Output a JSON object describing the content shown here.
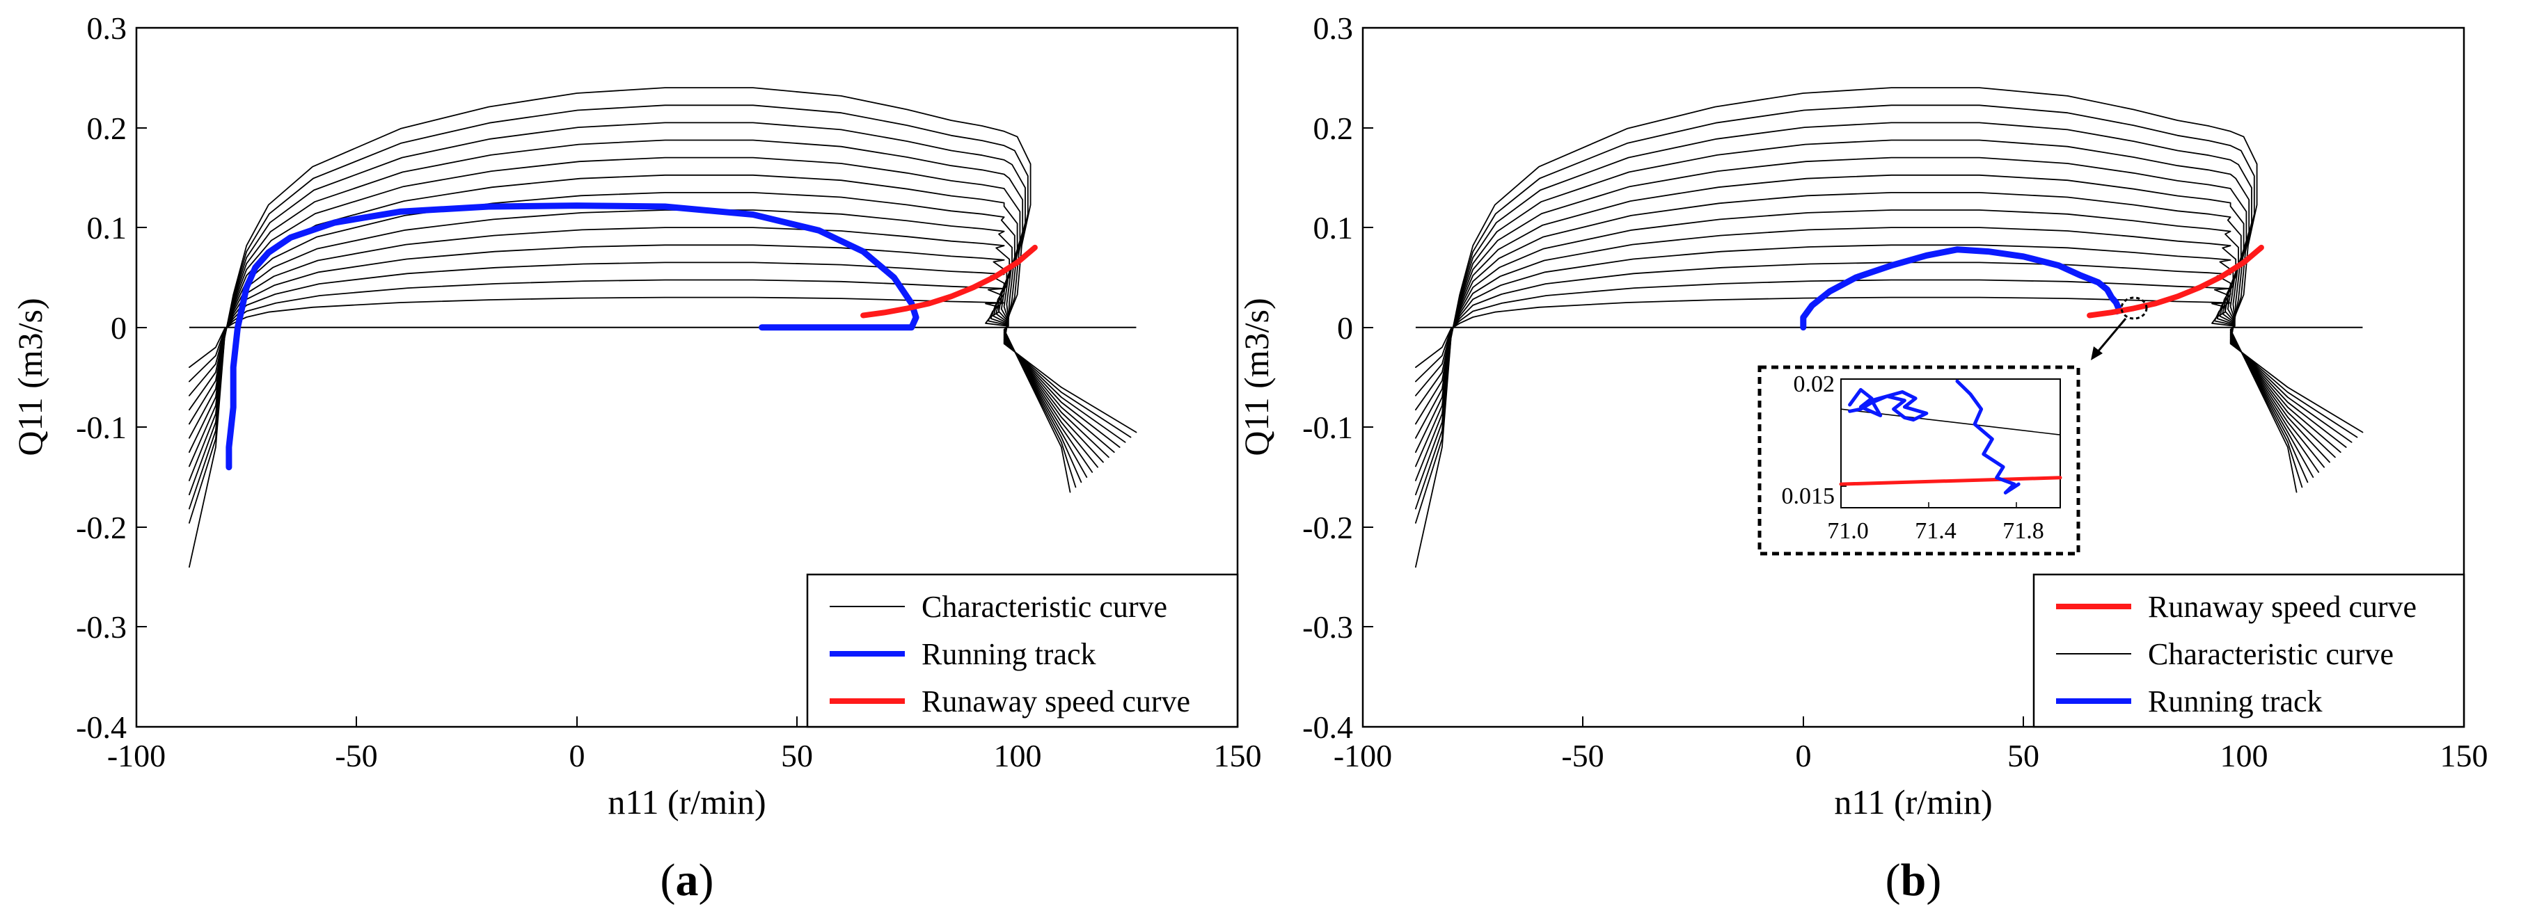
{
  "figure": {
    "colors": {
      "characteristic": "#000000",
      "running": "#0a1aff",
      "runaway": "#ff1a1a"
    }
  },
  "chart_data": [
    {
      "type": "line",
      "panel_label": "(a)",
      "panel_letter": "a",
      "xlabel": "n11 (r/min)",
      "ylabel": "Q11 (m3/s)",
      "xlim": [
        -100,
        150
      ],
      "ylim": [
        -0.4,
        0.3
      ],
      "xticks": [
        -100,
        -50,
        0,
        50,
        100,
        150
      ],
      "xtick_labels": [
        "-100",
        "-50",
        "0",
        "50",
        "100",
        "150"
      ],
      "yticks": [
        -0.4,
        -0.3,
        -0.2,
        -0.1,
        0,
        0.1,
        0.2,
        0.3
      ],
      "ytick_labels": [
        "-0.4",
        "-0.3",
        "-0.2",
        "-0.1",
        "0",
        "0.1",
        "0.2",
        "0.3"
      ],
      "grid": false,
      "legend": {
        "placement": "bottom-right",
        "entries": [
          "Characteristic curve",
          "Running track",
          "Runaway speed curve"
        ]
      },
      "series": [
        {
          "name": "Characteristic curve",
          "kind": "family",
          "count": 13,
          "top_level_range": [
            0.03,
            0.24
          ],
          "x": [
            -88,
            -82,
            -80,
            -78,
            -75,
            -70,
            -60,
            -40,
            -20,
            0,
            20,
            40,
            60,
            75,
            85,
            92,
            97,
            100,
            103,
            103,
            101,
            100,
            98,
            97,
            110,
            127
          ],
          "shape": [
            -0.28,
            -0.14,
            -0.04,
            0.12,
            0.3,
            0.45,
            0.59,
            0.73,
            0.81,
            0.86,
            0.88,
            0.88,
            0.85,
            0.8,
            0.76,
            0.74,
            0.72,
            0.7,
            0.6,
            0.45,
            0.3,
            0.12,
            0.04,
            -0.06,
            -0.16,
            -0.24
          ]
        },
        {
          "name": "Running track",
          "x": [
            -79,
            -79,
            -78,
            -78,
            -77,
            -76,
            -75,
            -73,
            -70,
            -65,
            -55,
            -40,
            -20,
            0,
            20,
            40,
            55,
            65,
            72,
            76,
            77,
            76,
            72,
            60,
            42
          ],
          "y": [
            -0.14,
            -0.12,
            -0.08,
            -0.04,
            0.0,
            0.02,
            0.04,
            0.06,
            0.075,
            0.09,
            0.105,
            0.116,
            0.121,
            0.122,
            0.121,
            0.113,
            0.097,
            0.076,
            0.05,
            0.024,
            0.01,
            0.0,
            0.0,
            0.0,
            0.0
          ]
        },
        {
          "name": "Runaway speed curve",
          "x": [
            65,
            70,
            75,
            80,
            85,
            90,
            95,
            100,
            104
          ],
          "y": [
            0.012,
            0.015,
            0.019,
            0.024,
            0.031,
            0.04,
            0.051,
            0.065,
            0.08
          ]
        }
      ]
    },
    {
      "type": "line",
      "panel_label": "(b)",
      "panel_letter": "b",
      "xlabel": "n11 (r/min)",
      "ylabel": "Q11 (m3/s)",
      "xlim": [
        -100,
        150
      ],
      "ylim": [
        -0.4,
        0.3
      ],
      "xticks": [
        -100,
        -50,
        0,
        50,
        100,
        150
      ],
      "xtick_labels": [
        "-100",
        "-50",
        "0",
        "50",
        "100",
        "150"
      ],
      "yticks": [
        -0.4,
        -0.3,
        -0.2,
        -0.1,
        0,
        0.1,
        0.2,
        0.3
      ],
      "ytick_labels": [
        "-0.4",
        "-0.3",
        "-0.2",
        "-0.1",
        "0",
        "0.1",
        "0.2",
        "0.3"
      ],
      "grid": false,
      "legend": {
        "placement": "bottom-right",
        "entries": [
          "Runaway speed curve",
          "Characteristic curve",
          "Running track"
        ]
      },
      "series": [
        {
          "name": "Characteristic curve",
          "kind": "family",
          "count": 13,
          "top_level_range": [
            0.03,
            0.24
          ],
          "x": [
            -88,
            -82,
            -80,
            -78,
            -75,
            -70,
            -60,
            -40,
            -20,
            0,
            20,
            40,
            60,
            75,
            85,
            92,
            97,
            100,
            103,
            103,
            101,
            100,
            98,
            97,
            110,
            127
          ],
          "shape": [
            -0.28,
            -0.14,
            -0.04,
            0.12,
            0.3,
            0.45,
            0.59,
            0.73,
            0.81,
            0.86,
            0.88,
            0.88,
            0.85,
            0.8,
            0.76,
            0.74,
            0.72,
            0.7,
            0.6,
            0.45,
            0.3,
            0.12,
            0.04,
            -0.06,
            -0.16,
            -0.24
          ]
        },
        {
          "name": "Running track",
          "x": [
            0,
            0,
            2,
            6,
            12,
            20,
            28,
            35,
            42,
            50,
            58,
            63,
            67,
            69,
            70,
            71,
            71.5,
            71.8,
            71.2
          ],
          "y": [
            0.0,
            0.01,
            0.022,
            0.036,
            0.05,
            0.062,
            0.072,
            0.078,
            0.076,
            0.071,
            0.062,
            0.052,
            0.045,
            0.038,
            0.03,
            0.025,
            0.02,
            0.017,
            0.016
          ]
        },
        {
          "name": "Runaway speed curve",
          "x": [
            65,
            70,
            75,
            80,
            85,
            90,
            95,
            100,
            104
          ],
          "y": [
            0.012,
            0.015,
            0.019,
            0.024,
            0.031,
            0.04,
            0.051,
            0.065,
            0.08
          ]
        }
      ],
      "inset": {
        "zoom_center": [
          71.4,
          0.018
        ],
        "xlim": [
          71.0,
          72.0
        ],
        "ylim": [
          0.014,
          0.02
        ],
        "xtick_labels": [
          "71.0",
          "71.4",
          "71.8"
        ],
        "xticks": [
          71.0,
          71.4,
          71.8
        ],
        "ytick_labels": [
          "0.02",
          "0.015"
        ],
        "yticks": [
          0.02,
          0.015
        ],
        "characteristic": {
          "x": [
            71.0,
            72.0
          ],
          "y": [
            0.0186,
            0.0174
          ]
        },
        "runaway": {
          "x": [
            71.0,
            72.0
          ],
          "y": [
            0.0151,
            0.0154
          ]
        },
        "running_track_1": {
          "x": [
            71.04,
            71.09,
            71.14,
            71.09,
            71.18,
            71.14,
            71.28,
            71.34,
            71.29,
            71.39,
            71.33,
            71.29,
            71.24,
            71.29,
            71.21,
            71.14,
            71.09,
            71.04
          ],
          "y": [
            0.0188,
            0.0195,
            0.0191,
            0.0187,
            0.0183,
            0.019,
            0.0194,
            0.0191,
            0.0187,
            0.0184,
            0.0181,
            0.0182,
            0.0186,
            0.019,
            0.0192,
            0.0189,
            0.0186,
            0.0185
          ]
        },
        "running_track_2": {
          "x": [
            71.53,
            71.59,
            71.64,
            71.61,
            71.69,
            71.65,
            71.74,
            71.71,
            71.79,
            71.75,
            71.81
          ],
          "y": [
            0.0199,
            0.0193,
            0.0186,
            0.0179,
            0.0172,
            0.0165,
            0.0159,
            0.0154,
            0.0151,
            0.0147,
            0.0151
          ]
        }
      }
    }
  ]
}
